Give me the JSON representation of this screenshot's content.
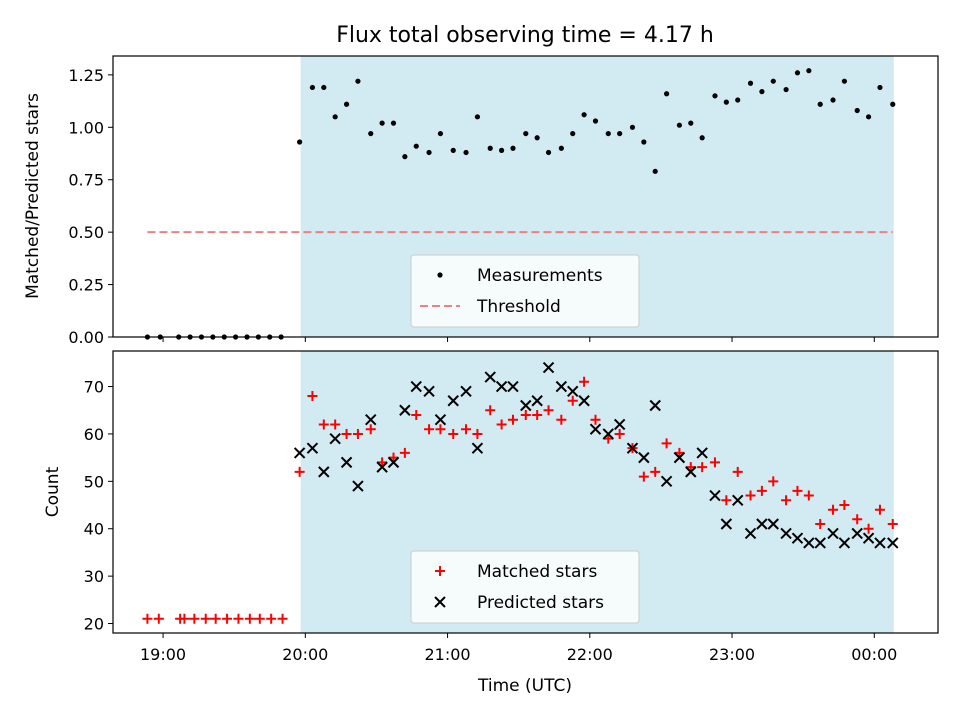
{
  "title": "Flux total observing time = 4.17 h",
  "x_axis": {
    "label": "Time (UTC)",
    "unit": "hours since 18:00 UTC",
    "range": [
      0.648,
      6.448
    ],
    "ticks": [
      {
        "value": 1,
        "label": "19:00"
      },
      {
        "value": 2,
        "label": "20:00"
      },
      {
        "value": 3,
        "label": "21:00"
      },
      {
        "value": 4,
        "label": "22:00"
      },
      {
        "value": 5,
        "label": "23:00"
      },
      {
        "value": 6,
        "label": "00:00"
      }
    ]
  },
  "shaded_span": {
    "start": 1.967,
    "end": 6.137,
    "color": "#add8e6"
  },
  "chart_data": [
    {
      "type": "scatter",
      "ylabel": "Matched/Predicted stars",
      "ylim": [
        0,
        1.34
      ],
      "yticks": [
        {
          "value": 0,
          "label": "0.00"
        },
        {
          "value": 0.25,
          "label": "0.25"
        },
        {
          "value": 0.5,
          "label": "0.50"
        },
        {
          "value": 0.75,
          "label": "0.75"
        },
        {
          "value": 1.0,
          "label": "1.00"
        },
        {
          "value": 1.25,
          "label": "1.25"
        }
      ],
      "legend_position": "bottom-center",
      "series": [
        {
          "name": "Measurements",
          "marker": "dot",
          "color": "#000000",
          "points": [
            [
              0.89,
              0
            ],
            [
              0.98,
              0
            ],
            [
              1.11,
              0
            ],
            [
              1.19,
              0
            ],
            [
              1.27,
              0
            ],
            [
              1.35,
              0
            ],
            [
              1.43,
              0
            ],
            [
              1.51,
              0
            ],
            [
              1.59,
              0
            ],
            [
              1.67,
              0
            ],
            [
              1.75,
              0
            ],
            [
              1.83,
              0
            ],
            [
              1.96,
              0.93
            ],
            [
              2.05,
              1.19
            ],
            [
              2.13,
              1.19
            ],
            [
              2.21,
              1.05
            ],
            [
              2.29,
              1.11
            ],
            [
              2.37,
              1.22
            ],
            [
              2.46,
              0.97
            ],
            [
              2.54,
              1.02
            ],
            [
              2.62,
              1.02
            ],
            [
              2.7,
              0.86
            ],
            [
              2.78,
              0.91
            ],
            [
              2.87,
              0.88
            ],
            [
              2.95,
              0.97
            ],
            [
              3.04,
              0.89
            ],
            [
              3.13,
              0.88
            ],
            [
              3.21,
              1.05
            ],
            [
              3.3,
              0.9
            ],
            [
              3.38,
              0.89
            ],
            [
              3.46,
              0.9
            ],
            [
              3.55,
              0.97
            ],
            [
              3.63,
              0.95
            ],
            [
              3.71,
              0.88
            ],
            [
              3.8,
              0.9
            ],
            [
              3.88,
              0.97
            ],
            [
              3.96,
              1.06
            ],
            [
              4.04,
              1.03
            ],
            [
              4.13,
              0.97
            ],
            [
              4.21,
              0.97
            ],
            [
              4.3,
              1.0
            ],
            [
              4.38,
              0.93
            ],
            [
              4.46,
              0.79
            ],
            [
              4.54,
              1.16
            ],
            [
              4.63,
              1.01
            ],
            [
              4.71,
              1.02
            ],
            [
              4.79,
              0.95
            ],
            [
              4.88,
              1.15
            ],
            [
              4.96,
              1.12
            ],
            [
              5.04,
              1.13
            ],
            [
              5.13,
              1.21
            ],
            [
              5.21,
              1.17
            ],
            [
              5.29,
              1.22
            ],
            [
              5.38,
              1.18
            ],
            [
              5.46,
              1.26
            ],
            [
              5.54,
              1.27
            ],
            [
              5.62,
              1.11
            ],
            [
              5.71,
              1.13
            ],
            [
              5.79,
              1.22
            ],
            [
              5.88,
              1.08
            ],
            [
              5.96,
              1.05
            ],
            [
              6.04,
              1.19
            ],
            [
              6.13,
              1.11
            ]
          ]
        },
        {
          "name": "Threshold",
          "type": "line",
          "style": "dashed",
          "color": "#f08080",
          "points": [
            [
              0.89,
              0.5
            ],
            [
              6.13,
              0.5
            ]
          ]
        }
      ]
    },
    {
      "type": "scatter",
      "ylabel": "Count",
      "ylim": [
        18,
        77.5
      ],
      "yticks": [
        {
          "value": 20,
          "label": "20"
        },
        {
          "value": 30,
          "label": "30"
        },
        {
          "value": 40,
          "label": "40"
        },
        {
          "value": 50,
          "label": "50"
        },
        {
          "value": 60,
          "label": "60"
        },
        {
          "value": 70,
          "label": "70"
        }
      ],
      "legend_position": "bottom-center",
      "series": [
        {
          "name": "Matched stars",
          "marker": "plus",
          "color": "#ff0000",
          "points": [
            [
              0.89,
              21
            ],
            [
              0.97,
              21
            ],
            [
              1.12,
              21
            ],
            [
              1.15,
              21
            ],
            [
              1.22,
              21
            ],
            [
              1.3,
              21
            ],
            [
              1.37,
              21
            ],
            [
              1.45,
              21
            ],
            [
              1.53,
              21
            ],
            [
              1.61,
              21
            ],
            [
              1.68,
              21
            ],
            [
              1.76,
              21
            ],
            [
              1.84,
              21
            ],
            [
              1.96,
              52
            ],
            [
              2.05,
              68
            ],
            [
              2.13,
              62
            ],
            [
              2.21,
              62
            ],
            [
              2.29,
              60
            ],
            [
              2.37,
              60
            ],
            [
              2.46,
              61
            ],
            [
              2.54,
              54
            ],
            [
              2.62,
              55
            ],
            [
              2.7,
              56
            ],
            [
              2.78,
              64
            ],
            [
              2.87,
              61
            ],
            [
              2.95,
              61
            ],
            [
              3.04,
              60
            ],
            [
              3.13,
              61
            ],
            [
              3.21,
              60
            ],
            [
              3.3,
              65
            ],
            [
              3.38,
              62
            ],
            [
              3.46,
              63
            ],
            [
              3.55,
              64
            ],
            [
              3.63,
              64
            ],
            [
              3.71,
              65
            ],
            [
              3.8,
              63
            ],
            [
              3.88,
              67
            ],
            [
              3.96,
              71
            ],
            [
              4.04,
              63
            ],
            [
              4.13,
              59
            ],
            [
              4.21,
              60
            ],
            [
              4.3,
              57
            ],
            [
              4.38,
              51
            ],
            [
              4.46,
              52
            ],
            [
              4.54,
              58
            ],
            [
              4.63,
              56
            ],
            [
              4.71,
              53
            ],
            [
              4.79,
              53
            ],
            [
              4.88,
              54
            ],
            [
              4.96,
              46
            ],
            [
              5.04,
              52
            ],
            [
              5.13,
              47
            ],
            [
              5.21,
              48
            ],
            [
              5.29,
              50
            ],
            [
              5.38,
              46
            ],
            [
              5.46,
              48
            ],
            [
              5.54,
              47
            ],
            [
              5.62,
              41
            ],
            [
              5.71,
              44
            ],
            [
              5.79,
              45
            ],
            [
              5.88,
              42
            ],
            [
              5.96,
              40
            ],
            [
              6.04,
              44
            ],
            [
              6.13,
              41
            ]
          ]
        },
        {
          "name": "Predicted stars",
          "marker": "x",
          "color": "#000000",
          "points": [
            [
              1.96,
              56
            ],
            [
              2.05,
              57
            ],
            [
              2.13,
              52
            ],
            [
              2.21,
              59
            ],
            [
              2.29,
              54
            ],
            [
              2.37,
              49
            ],
            [
              2.46,
              63
            ],
            [
              2.54,
              53
            ],
            [
              2.62,
              54
            ],
            [
              2.7,
              65
            ],
            [
              2.78,
              70
            ],
            [
              2.87,
              69
            ],
            [
              2.95,
              63
            ],
            [
              3.04,
              67
            ],
            [
              3.13,
              69
            ],
            [
              3.21,
              57
            ],
            [
              3.3,
              72
            ],
            [
              3.38,
              70
            ],
            [
              3.46,
              70
            ],
            [
              3.55,
              66
            ],
            [
              3.63,
              67
            ],
            [
              3.71,
              74
            ],
            [
              3.8,
              70
            ],
            [
              3.88,
              69
            ],
            [
              3.96,
              67
            ],
            [
              4.04,
              61
            ],
            [
              4.13,
              60
            ],
            [
              4.21,
              62
            ],
            [
              4.3,
              57
            ],
            [
              4.38,
              55
            ],
            [
              4.46,
              66
            ],
            [
              4.54,
              50
            ],
            [
              4.63,
              55
            ],
            [
              4.71,
              52
            ],
            [
              4.79,
              56
            ],
            [
              4.88,
              47
            ],
            [
              4.96,
              41
            ],
            [
              5.04,
              46
            ],
            [
              5.13,
              39
            ],
            [
              5.21,
              41
            ],
            [
              5.29,
              41
            ],
            [
              5.38,
              39
            ],
            [
              5.46,
              38
            ],
            [
              5.54,
              37
            ],
            [
              5.62,
              37
            ],
            [
              5.71,
              39
            ],
            [
              5.79,
              37
            ],
            [
              5.88,
              39
            ],
            [
              5.96,
              38
            ],
            [
              6.04,
              37
            ],
            [
              6.13,
              37
            ]
          ]
        }
      ]
    }
  ]
}
